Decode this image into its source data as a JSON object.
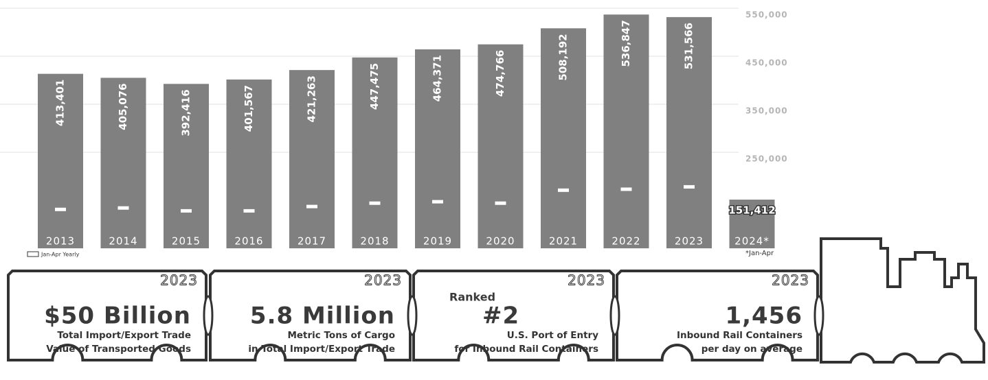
{
  "chart_data": {
    "type": "bar",
    "categories": [
      "2013",
      "2014",
      "2015",
      "2016",
      "2017",
      "2018",
      "2019",
      "2020",
      "2021",
      "2022",
      "2023",
      "2024*"
    ],
    "series": [
      {
        "color": "#808080",
        "values": [
          413401,
          405076,
          392416,
          401567,
          421263,
          447475,
          464371,
          474766,
          508192,
          536847,
          531566,
          151412
        ],
        "value_labels": [
          "413,401",
          "405,076",
          "392,416",
          "401,567",
          "421,263",
          "447,475",
          "464,371",
          "474,766",
          "508,192",
          "536,847",
          "531,566",
          "151,412"
        ]
      },
      {
        "name": "Jan-Apr Yearly",
        "color": "#ffffff",
        "values": [
          131000,
          134000,
          128000,
          128000,
          137000,
          144000,
          147000,
          144000,
          171000,
          173000,
          178000,
          null
        ]
      }
    ],
    "ylim": [
      50000,
      550000
    ],
    "yticks": [
      {
        "value": 550000,
        "label": "550,000"
      },
      {
        "value": 450000,
        "label": "450,000"
      },
      {
        "value": 350000,
        "label": "350,000"
      },
      {
        "value": 250000,
        "label": "250,000"
      }
    ],
    "grid": true,
    "footnote": "*Jan-Apr"
  },
  "cards": [
    {
      "year": "2023",
      "headline": "$50 Billion",
      "lines": [
        "Total Import/Export Trade",
        "Value of Transported Goods"
      ]
    },
    {
      "year": "2023",
      "headline": "5.8 Million",
      "lines": [
        "Metric Tons of Cargo",
        "in Total Import/Export Trade"
      ]
    },
    {
      "year": "2023",
      "prefix": "Ranked",
      "headline": "#2",
      "lines": [
        "U.S. Port of Entry",
        "for Inbound Rail Containers"
      ]
    },
    {
      "year": "2023",
      "headline": "1,456",
      "lines": [
        "Inbound Rail Containers",
        "per day on average"
      ]
    }
  ]
}
